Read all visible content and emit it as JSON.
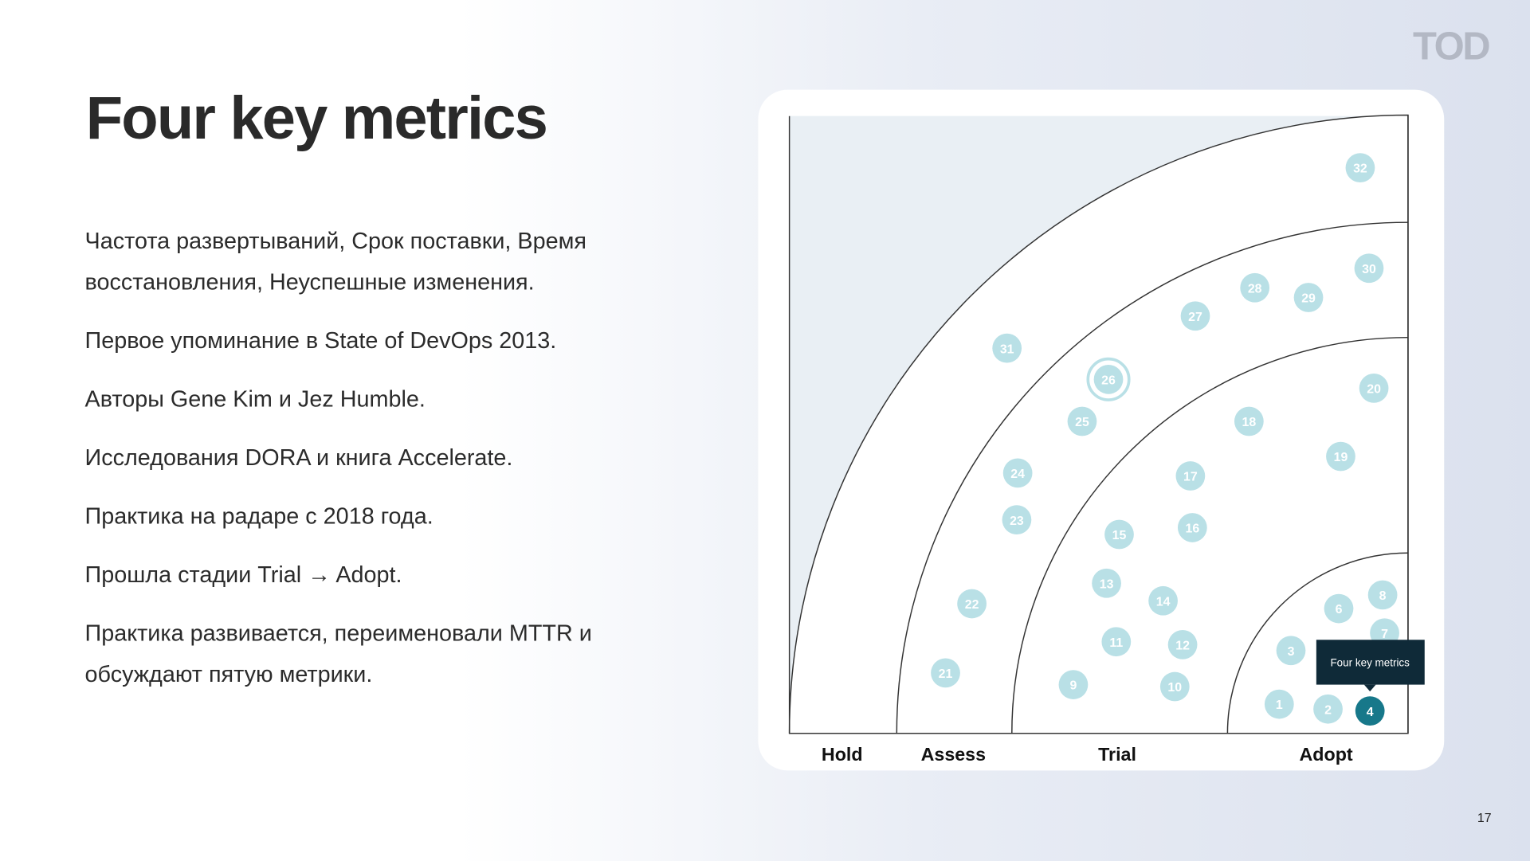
{
  "logo": "TOD",
  "title": "Four key metrics",
  "paragraphs": [
    [
      "Частота развертываний, Срок поставки, Время",
      "восстановления, Неуспешные изменения."
    ],
    [
      "Первое упоминание в State of DevOps 2013."
    ],
    [
      "Авторы Gene Kim и Jez Humble."
    ],
    [
      "Исследования DORA и книга Accelerate."
    ],
    [
      "Практика на радаре с 2018 года."
    ],
    [
      "Прошла стадии Trial → Adopt."
    ],
    [
      "Практика развивается, переименовали MTTR и",
      "обсуждают пятую метрики."
    ]
  ],
  "radar": {
    "rings": [
      "Hold",
      "Assess",
      "Trial",
      "Adopt"
    ],
    "blips": [
      "1",
      "2",
      "3",
      "4",
      "6",
      "7",
      "8",
      "9",
      "10",
      "11",
      "12",
      "13",
      "14",
      "15",
      "16",
      "17",
      "18",
      "19",
      "20",
      "21",
      "22",
      "23",
      "24",
      "25",
      "26",
      "27",
      "28",
      "29",
      "30",
      "31",
      "32"
    ],
    "tooltip": "Four key metrics"
  },
  "page_number": "17"
}
